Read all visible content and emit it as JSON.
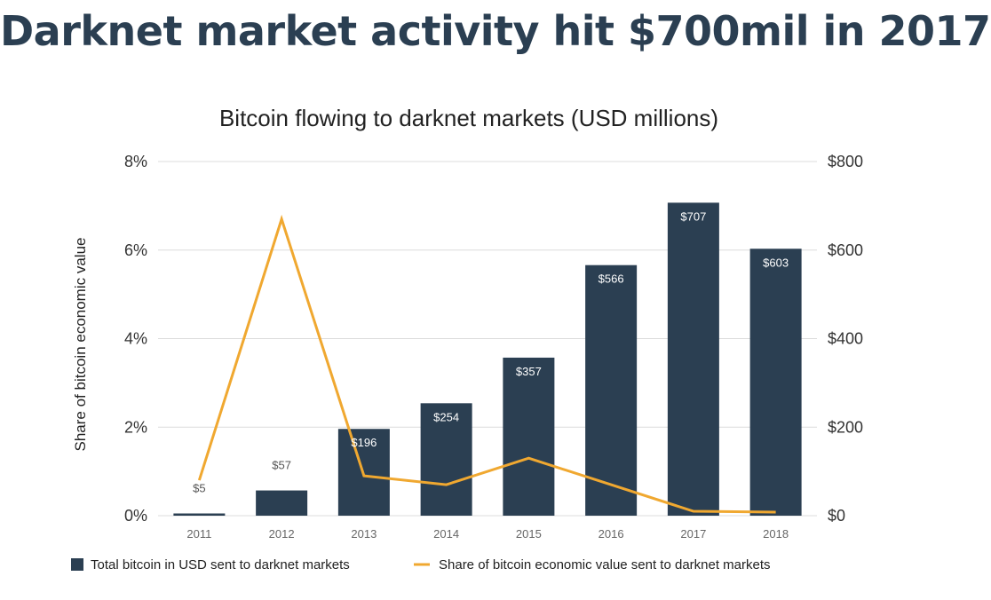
{
  "headline": "Darknet market activity hit $700mil in 2017",
  "chart_data": {
    "type": "bar",
    "title": "Bitcoin flowing to darknet markets (USD millions)",
    "ylabel": "Share of bitcoin economic value",
    "categories": [
      "2011",
      "2012",
      "2013",
      "2014",
      "2015",
      "2016",
      "2017",
      "2018"
    ],
    "left_axis": {
      "ticks": [
        "0%",
        "2%",
        "4%",
        "6%",
        "8%"
      ],
      "ylim": [
        0,
        8
      ]
    },
    "right_axis": {
      "ticks": [
        "$0",
        "$200",
        "$400",
        "$600",
        "$800"
      ],
      "ylim": [
        0,
        800
      ]
    },
    "series": [
      {
        "name": "Total bitcoin in USD sent to darknet markets",
        "type": "bar",
        "axis": "right",
        "color": "#2b3f52",
        "values": [
          5,
          57,
          196,
          254,
          357,
          566,
          707,
          603
        ],
        "labels": [
          "$5",
          "$57",
          "$196",
          "$254",
          "$357",
          "$566",
          "$707",
          "$603"
        ]
      },
      {
        "name": "Share of bitcoin economic value sent to darknet markets",
        "type": "line",
        "axis": "left",
        "color": "#f0a830",
        "values": [
          0.8,
          6.7,
          0.9,
          0.7,
          1.3,
          0.7,
          0.1,
          0.08
        ]
      }
    ],
    "grid": true,
    "legend_position": "bottom"
  }
}
